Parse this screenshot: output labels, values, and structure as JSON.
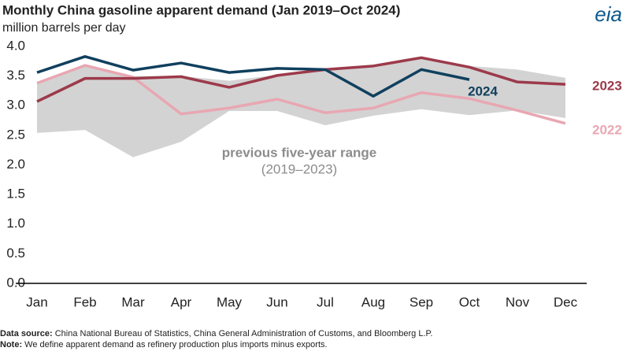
{
  "chart_data": {
    "type": "line",
    "title": "Monthly China gasoline apparent demand (Jan 2019–Oct 2024)",
    "subtitle": "million barrels per day",
    "logo": "eia",
    "categories": [
      "Jan",
      "Feb",
      "Mar",
      "Apr",
      "May",
      "Jun",
      "Jul",
      "Aug",
      "Sep",
      "Oct",
      "Nov",
      "Dec"
    ],
    "range": {
      "label": "previous five-year range",
      "sublabel": "(2019–2023)",
      "color": "#d3d3d3",
      "lower": [
        2.54,
        2.59,
        2.13,
        2.39,
        2.91,
        2.91,
        2.67,
        2.83,
        2.94,
        2.84,
        2.92,
        2.79
      ],
      "upper": [
        3.4,
        3.68,
        3.5,
        3.5,
        3.42,
        3.52,
        3.62,
        3.67,
        3.82,
        3.67,
        3.61,
        3.47
      ]
    },
    "series": [
      {
        "name": "2022",
        "color": "#e8a7b2",
        "values": [
          3.38,
          3.68,
          3.48,
          2.86,
          2.96,
          3.11,
          2.88,
          2.96,
          3.22,
          3.12,
          2.92,
          2.7
        ]
      },
      {
        "name": "2023",
        "color": "#9c3a4b",
        "values": [
          3.07,
          3.46,
          3.46,
          3.49,
          3.31,
          3.51,
          3.61,
          3.67,
          3.81,
          3.65,
          3.4,
          3.36
        ]
      },
      {
        "name": "2024",
        "color": "#10405e",
        "values": [
          3.56,
          3.83,
          3.6,
          3.72,
          3.56,
          3.63,
          3.61,
          3.16,
          3.61,
          3.44,
          null,
          null
        ]
      }
    ],
    "ylim": [
      0,
      4
    ],
    "yticks": [
      {
        "value": 0,
        "label": "0.0"
      },
      {
        "value": 0.5,
        "label": "0.5"
      },
      {
        "value": 1,
        "label": "1.0"
      },
      {
        "value": 1.5,
        "label": "1.5"
      },
      {
        "value": 2,
        "label": "2.0"
      },
      {
        "value": 2.5,
        "label": "2.5"
      },
      {
        "value": 3,
        "label": "3.0"
      },
      {
        "value": 3.5,
        "label": "3.5"
      },
      {
        "value": 4,
        "label": "4.0"
      }
    ],
    "grid": false,
    "footnotes": [
      {
        "label": "Data source:",
        "text": "China National Bureau of Statistics, China General Administration of Customs, and Bloomberg L.P."
      },
      {
        "label": "Note:",
        "text": "We define apparent demand as refinery production plus imports minus exports."
      }
    ]
  }
}
